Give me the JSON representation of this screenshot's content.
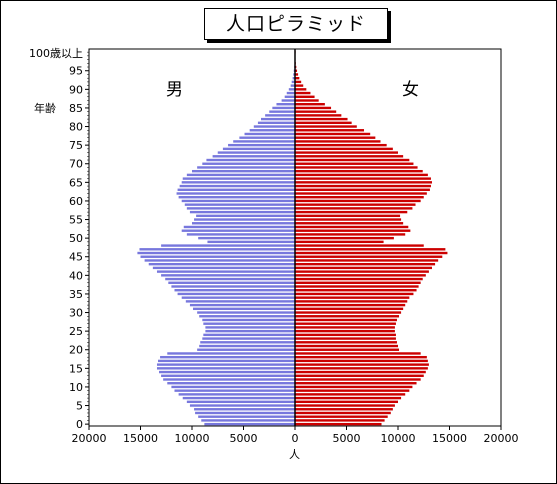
{
  "chart_data": {
    "type": "bar",
    "title": "人口ピラミッド",
    "xlabel": "人",
    "ylabel": "年齢",
    "male_label": "男",
    "female_label": "女",
    "top_age_label": "100歳以上",
    "xlim": [
      -20000,
      20000
    ],
    "x_ticks": [
      -20000,
      -15000,
      -10000,
      -5000,
      0,
      5000,
      10000,
      15000,
      20000
    ],
    "x_tick_labels": [
      "20000",
      "15000",
      "10000",
      "5000",
      "0",
      "5000",
      "10000",
      "15000",
      "20000"
    ],
    "y_ticks": [
      0,
      5,
      10,
      15,
      20,
      25,
      30,
      35,
      40,
      45,
      50,
      55,
      60,
      65,
      70,
      75,
      80,
      85,
      90,
      95
    ],
    "y_tick_labels": [
      "0",
      "5",
      "10",
      "15",
      "20",
      "25",
      "30",
      "35",
      "40",
      "45",
      "50",
      "55",
      "60",
      "65",
      "70",
      "75",
      "80",
      "85",
      "90",
      "95"
    ],
    "ages": [
      0,
      1,
      2,
      3,
      4,
      5,
      6,
      7,
      8,
      9,
      10,
      11,
      12,
      13,
      14,
      15,
      16,
      17,
      18,
      19,
      20,
      21,
      22,
      23,
      24,
      25,
      26,
      27,
      28,
      29,
      30,
      31,
      32,
      33,
      34,
      35,
      36,
      37,
      38,
      39,
      40,
      41,
      42,
      43,
      44,
      45,
      46,
      47,
      48,
      49,
      50,
      51,
      52,
      53,
      54,
      55,
      56,
      57,
      58,
      59,
      60,
      61,
      62,
      63,
      64,
      65,
      66,
      67,
      68,
      69,
      70,
      71,
      72,
      73,
      74,
      75,
      76,
      77,
      78,
      79,
      80,
      81,
      82,
      83,
      84,
      85,
      86,
      87,
      88,
      89,
      90,
      91,
      92,
      93,
      94,
      95,
      96,
      97,
      98,
      99,
      100
    ],
    "series": [
      {
        "name": "男",
        "color": "#7777dd",
        "values": [
          8800,
          9100,
          9400,
          9700,
          9800,
          10200,
          10500,
          10900,
          11300,
          11700,
          12000,
          12400,
          12800,
          13000,
          13200,
          13400,
          13400,
          13300,
          13100,
          12400,
          9500,
          9300,
          9200,
          9000,
          8900,
          8700,
          8700,
          8900,
          9000,
          9300,
          9500,
          9900,
          10200,
          10600,
          11000,
          11400,
          11700,
          12000,
          12300,
          12600,
          13000,
          13400,
          13800,
          14200,
          14600,
          15000,
          15300,
          15100,
          13000,
          8500,
          9400,
          10500,
          11000,
          10800,
          10000,
          9800,
          9600,
          10200,
          10500,
          10700,
          11000,
          11300,
          11500,
          11400,
          11200,
          11000,
          10900,
          10500,
          10000,
          9500,
          9000,
          8600,
          8000,
          7500,
          7000,
          6500,
          6000,
          5400,
          4900,
          4400,
          4000,
          3600,
          3300,
          2900,
          2500,
          2200,
          1800,
          1300,
          1000,
          800,
          600,
          420,
          320,
          230,
          170,
          120,
          80,
          50,
          35,
          25,
          40
        ]
      },
      {
        "name": "女",
        "color": "#cc0000",
        "values": [
          8400,
          8700,
          9000,
          9300,
          9500,
          9700,
          10000,
          10300,
          10700,
          11100,
          11400,
          11800,
          12200,
          12500,
          12700,
          12900,
          13000,
          12900,
          12800,
          12200,
          10100,
          10000,
          9900,
          9800,
          9800,
          9700,
          9700,
          9800,
          9900,
          10100,
          10300,
          10500,
          10700,
          10900,
          11100,
          11500,
          11800,
          12000,
          12200,
          12400,
          12700,
          13000,
          13300,
          13600,
          13900,
          14300,
          14800,
          14600,
          12500,
          8600,
          9600,
          10700,
          11200,
          11000,
          10500,
          10300,
          10200,
          10900,
          11400,
          11700,
          12200,
          12500,
          12800,
          13100,
          13200,
          13300,
          13200,
          12900,
          12400,
          11900,
          11500,
          11100,
          10500,
          10000,
          9500,
          8900,
          8300,
          7800,
          7300,
          6700,
          6000,
          5500,
          5100,
          4500,
          4000,
          3500,
          2900,
          2300,
          1900,
          1500,
          1100,
          800,
          600,
          420,
          300,
          200,
          130,
          80,
          50,
          30,
          60
        ]
      }
    ],
    "grid": false,
    "legend": "none"
  }
}
